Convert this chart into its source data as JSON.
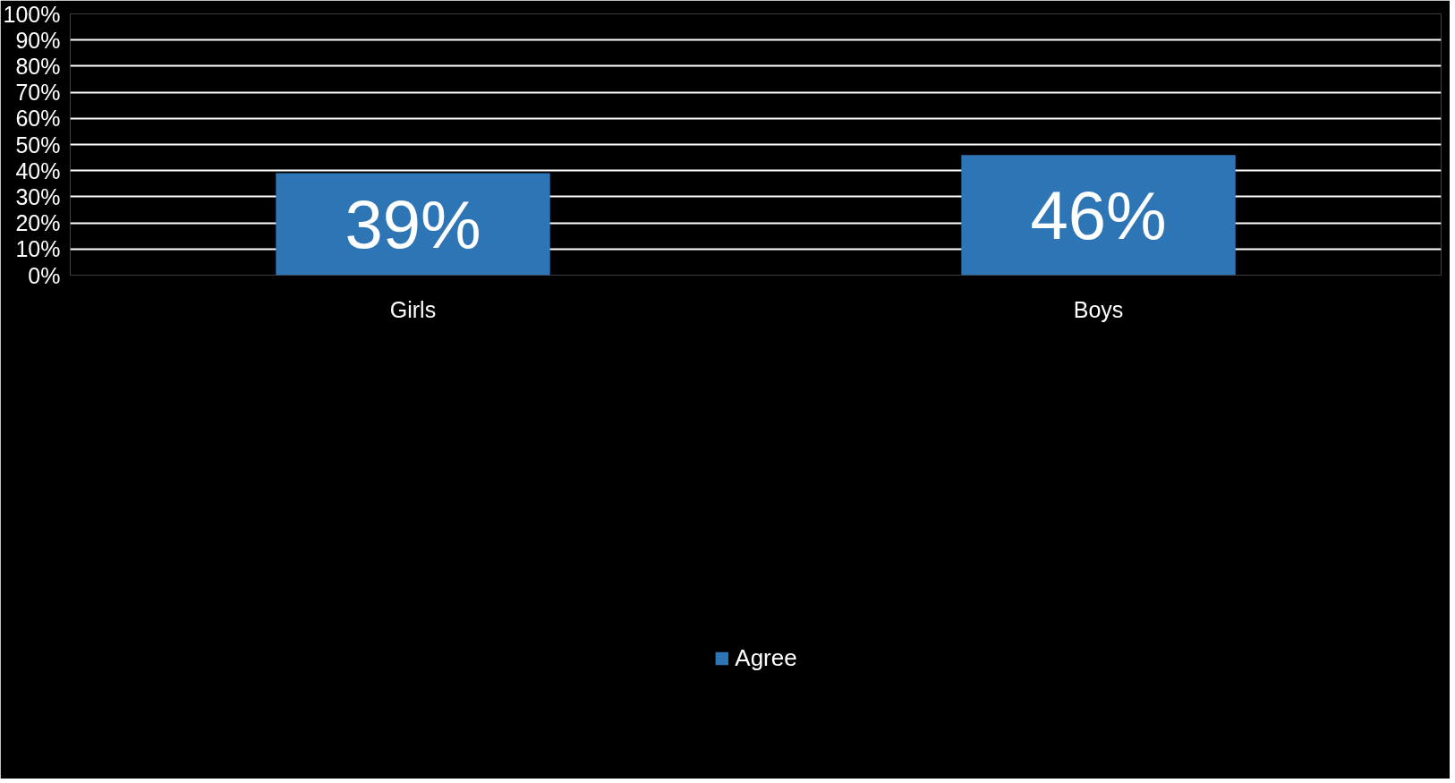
{
  "chart_data": {
    "type": "bar",
    "categories": [
      "Girls",
      "Boys"
    ],
    "series": [
      {
        "name": "Agree",
        "color": "#2e75b6",
        "values": [
          39,
          46
        ],
        "value_labels": [
          "39%",
          "46%"
        ]
      }
    ],
    "ylim": [
      0,
      100
    ],
    "yticks": [
      {
        "value": 0,
        "label": "0%"
      },
      {
        "value": 10,
        "label": "10%"
      },
      {
        "value": 20,
        "label": "20%"
      },
      {
        "value": 30,
        "label": "30%"
      },
      {
        "value": 40,
        "label": "40%"
      },
      {
        "value": 50,
        "label": "50%"
      },
      {
        "value": 60,
        "label": "60%"
      },
      {
        "value": 70,
        "label": "70%"
      },
      {
        "value": 80,
        "label": "80%"
      },
      {
        "value": 90,
        "label": "90%"
      },
      {
        "value": 100,
        "label": "100%"
      }
    ],
    "grid": "y",
    "legend": "bottom"
  }
}
